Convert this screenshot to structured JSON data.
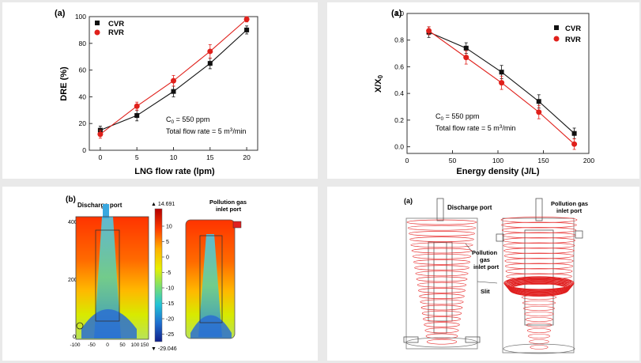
{
  "chart_data": [
    {
      "type": "line",
      "panel_label": "(a)",
      "xlabel": "LNG flow rate (lpm)",
      "ylabel": "DRE (%)",
      "xlim": [
        -1.5,
        21.5
      ],
      "ylim": [
        0,
        100
      ],
      "xticks": [
        0,
        5,
        10,
        15,
        20
      ],
      "yticks": [
        0,
        20,
        40,
        60,
        80,
        100
      ],
      "x": [
        0,
        5,
        10,
        15,
        20
      ],
      "series": [
        {
          "name": "CVR",
          "color": "#111111",
          "marker": "square",
          "values": [
            15,
            26,
            44,
            65,
            90
          ],
          "errors": [
            3,
            4,
            4,
            4,
            3
          ]
        },
        {
          "name": "RVR",
          "color": "#e0201b",
          "marker": "circle",
          "values": [
            12,
            33,
            52,
            74,
            98
          ],
          "errors": [
            3,
            3,
            4,
            5,
            2
          ]
        }
      ],
      "legend_position": "top-left",
      "annotation_lines": [
        "C",
        "0",
        " = 550 ppm",
        "Total flow rate = 5 m",
        "3",
        "/min"
      ]
    },
    {
      "type": "line",
      "panel_label": "(a)",
      "xlabel": "Energy density (J/L)",
      "ylabel": "X/X",
      "ylabel_sub": "0",
      "xlim": [
        0,
        200
      ],
      "ylim": [
        -0.05,
        1.0
      ],
      "xticks": [
        0,
        50,
        100,
        150,
        200
      ],
      "yticks": [
        0.0,
        0.2,
        0.4,
        0.6,
        0.8,
        1.0
      ],
      "ytick_labels": [
        "0.0",
        "0.2",
        "0.4",
        "0.6",
        "0.8",
        "1.0"
      ],
      "x": [
        24,
        65,
        104,
        145,
        184
      ],
      "series": [
        {
          "name": "CVR",
          "color": "#111111",
          "marker": "square",
          "values": [
            0.86,
            0.74,
            0.56,
            0.34,
            0.1
          ],
          "errors": [
            0.04,
            0.04,
            0.05,
            0.05,
            0.04
          ]
        },
        {
          "name": "RVR",
          "color": "#e0201b",
          "marker": "circle",
          "values": [
            0.87,
            0.67,
            0.48,
            0.26,
            0.02
          ],
          "errors": [
            0.03,
            0.05,
            0.05,
            0.05,
            0.04
          ]
        }
      ],
      "legend_position": "top-right",
      "annotation_lines": [
        "C",
        "0",
        " = 550 ppm",
        "Total flow rate = 5 m",
        "3",
        "/min"
      ]
    },
    {
      "type": "heatmap",
      "panel_label": "(b)",
      "labels": [
        "Discharge port",
        "Pollution gas",
        "inlet port"
      ],
      "axis_ticks_y": [
        "400",
        "200",
        "0"
      ],
      "axis_ticks_x": [
        "-100",
        "-50",
        "0",
        "50",
        "100",
        "150"
      ],
      "colorbar_max": "▲ 14.691",
      "colorbar_min": "▼ -29.046",
      "colorbar_ticks": [
        "10",
        "5",
        "0",
        "-5",
        "-10",
        "-15",
        "-20",
        "-25"
      ]
    },
    {
      "type": "diagram",
      "panel_label": "(a)",
      "labels": [
        "Discharge port",
        "Pollution gas",
        "inlet port",
        "Pollution",
        "gas",
        "inlet port",
        "Slit"
      ]
    }
  ]
}
